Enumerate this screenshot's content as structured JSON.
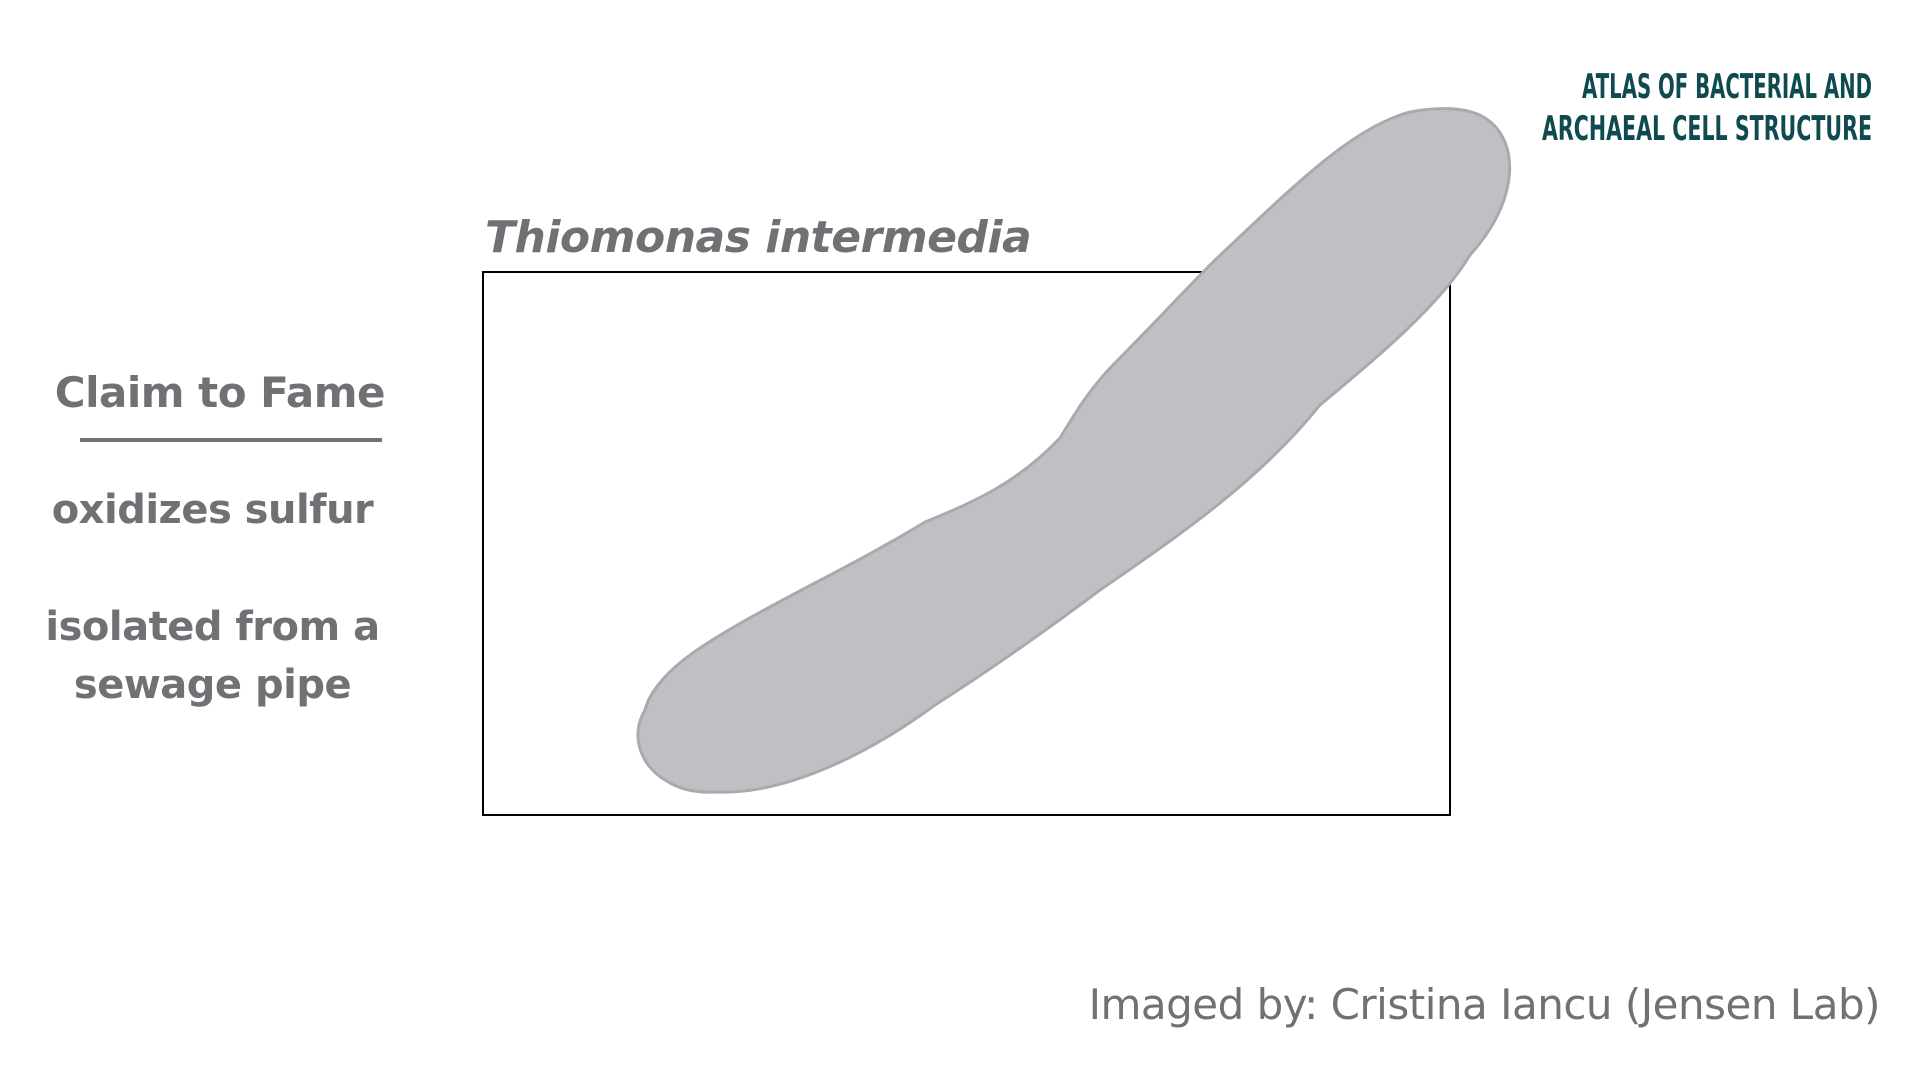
{
  "logo": {
    "line1": "ATLAS OF BACTERIAL AND",
    "line2": "ARCHAEAL CELL STRUCTURE",
    "color": "#0e4a4f"
  },
  "species": {
    "name": "Thiomonas intermedia"
  },
  "claim_to_fame": {
    "heading": "Claim to Fame",
    "facts": [
      {
        "line1": "oxidizes sulfur"
      },
      {
        "line1": "isolated from a",
        "line2": "sewage pipe"
      }
    ]
  },
  "credit": {
    "text": "Imaged by: Cristina Iancu (Jensen Lab)"
  },
  "colors": {
    "text_gray": "#707075",
    "cell_fill": "#bfc0c4",
    "cell_stroke": "#a9aaae",
    "frame_stroke": "#000000"
  }
}
